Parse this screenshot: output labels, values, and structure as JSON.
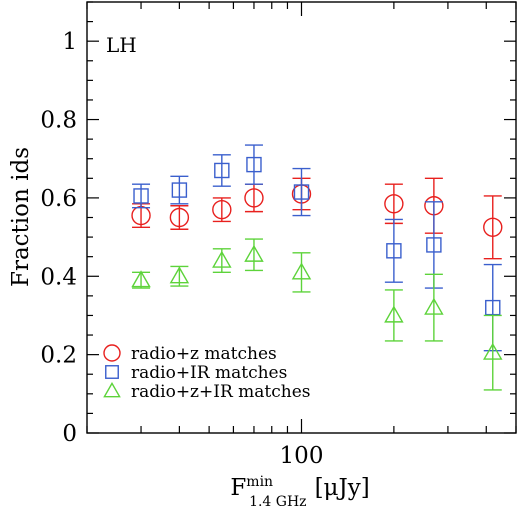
{
  "chart_data": {
    "type": "scatter",
    "panel_label": "LH",
    "xlabel": "F^min_1.4 GHz [μJy]",
    "xlabel_parts": {
      "base": "F",
      "sup": "min",
      "sub": "1.4 GHz",
      "unit": "[μJy]"
    },
    "ylabel": "Fraction ids",
    "x_scale": "log",
    "xlim": [
      20,
      500
    ],
    "ylim": [
      0,
      1.1
    ],
    "x_ticks_labeled": [
      {
        "value": 100,
        "label": "100"
      }
    ],
    "y_ticks": [
      {
        "value": 0,
        "label": "0"
      },
      {
        "value": 0.2,
        "label": "0.2"
      },
      {
        "value": 0.4,
        "label": "0.4"
      },
      {
        "value": 0.6,
        "label": "0.6"
      },
      {
        "value": 0.8,
        "label": "0.8"
      },
      {
        "value": 1,
        "label": "1"
      }
    ],
    "legend_position": "bottom-left",
    "series": [
      {
        "name": "radio+z matches",
        "marker": "circle",
        "color": "#e8201e",
        "x": [
          30,
          40,
          55,
          70,
          100,
          200,
          270,
          420
        ],
        "y": [
          0.555,
          0.55,
          0.57,
          0.6,
          0.61,
          0.585,
          0.58,
          0.525
        ],
        "yerr_low": [
          0.03,
          0.03,
          0.03,
          0.035,
          0.04,
          0.05,
          0.07,
          0.08
        ],
        "yerr_high": [
          0.03,
          0.03,
          0.03,
          0.035,
          0.04,
          0.05,
          0.07,
          0.08
        ]
      },
      {
        "name": "radio+IR matches",
        "marker": "square",
        "color": "#3a5fcd",
        "x": [
          30,
          40,
          55,
          70,
          100,
          200,
          270,
          420
        ],
        "y": [
          0.605,
          0.62,
          0.67,
          0.685,
          0.615,
          0.465,
          0.48,
          0.32
        ],
        "yerr_low": [
          0.03,
          0.035,
          0.04,
          0.05,
          0.06,
          0.08,
          0.11,
          0.11
        ],
        "yerr_high": [
          0.03,
          0.035,
          0.04,
          0.05,
          0.06,
          0.08,
          0.11,
          0.11
        ]
      },
      {
        "name": "radio+z+IR matches",
        "marker": "triangle",
        "color": "#5dd33a",
        "x": [
          30,
          40,
          55,
          70,
          100,
          200,
          270,
          420
        ],
        "y": [
          0.39,
          0.4,
          0.44,
          0.455,
          0.41,
          0.3,
          0.32,
          0.205
        ],
        "yerr_low": [
          0.02,
          0.025,
          0.03,
          0.04,
          0.05,
          0.065,
          0.085,
          0.095
        ],
        "yerr_high": [
          0.02,
          0.025,
          0.03,
          0.04,
          0.05,
          0.065,
          0.085,
          0.095
        ]
      }
    ]
  }
}
